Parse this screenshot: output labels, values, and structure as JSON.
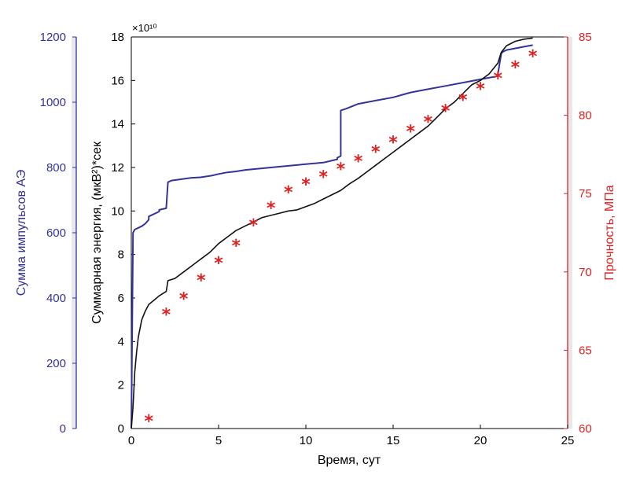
{
  "chart_data": {
    "type": "line",
    "xlabel": "Время, сут",
    "x_ticks": [
      "0",
      "5",
      "10",
      "15",
      "20",
      "25"
    ],
    "xlim": [
      0,
      25
    ],
    "axes": {
      "pulses": {
        "label": "Сумма импульсов АЭ",
        "lim": [
          0,
          1200
        ],
        "ticks": [
          "0",
          "200",
          "400",
          "600",
          "800",
          "1000",
          "1200"
        ],
        "color": "#333399"
      },
      "energy": {
        "label": "Суммарная энергия, (мкВ²)*сек",
        "lim": [
          0,
          18
        ],
        "ticks": [
          "0",
          "2",
          "4",
          "6",
          "8",
          "10",
          "12",
          "14",
          "16",
          "18"
        ],
        "multiplier": "×10¹⁰",
        "color": "#000000"
      },
      "strength": {
        "label": "Прочность, МПа",
        "lim": [
          60,
          85
        ],
        "ticks": [
          "60",
          "65",
          "70",
          "75",
          "80",
          "85"
        ],
        "color": "#dd2222"
      }
    },
    "series": [
      {
        "axis": "pulses",
        "color": "#333399",
        "style": "step",
        "x": [
          0,
          0.1,
          0.15,
          0.2,
          0.4,
          0.6,
          0.8,
          1.0,
          1.0,
          1.6,
          1.6,
          2.0,
          2.1,
          2.3,
          3.0,
          3.4,
          4.0,
          4.6,
          5.0,
          5.5,
          6.0,
          6.5,
          7.0,
          8.0,
          9.0,
          10.0,
          11.0,
          11.8,
          11.8,
          12.0,
          12.0,
          12.3,
          13.0,
          14.0,
          15.0,
          16.0,
          17.0,
          18.0,
          19.0,
          20.0,
          21.0,
          21.0,
          21.2,
          21.3,
          21.5,
          22.0,
          22.5,
          23.0
        ],
        "y": [
          0,
          600,
          605,
          610,
          615,
          620,
          628,
          640,
          650,
          665,
          670,
          675,
          755,
          760,
          765,
          768,
          770,
          775,
          780,
          785,
          788,
          792,
          795,
          800,
          805,
          810,
          815,
          825,
          830,
          835,
          975,
          980,
          995,
          1005,
          1015,
          1030,
          1040,
          1050,
          1060,
          1070,
          1080,
          1085,
          1150,
          1155,
          1160,
          1165,
          1170,
          1175
        ]
      },
      {
        "axis": "energy",
        "color": "#111111",
        "style": "line",
        "x": [
          0,
          0.1,
          0.15,
          0.2,
          0.3,
          0.4,
          0.6,
          0.8,
          1.0,
          1.3,
          1.6,
          2.0,
          2.1,
          2.5,
          3.0,
          3.5,
          4.0,
          4.5,
          5.0,
          5.5,
          6.0,
          6.5,
          7.0,
          7.5,
          8.0,
          8.5,
          9.0,
          9.5,
          10.0,
          10.5,
          11.0,
          11.5,
          12.0,
          12.5,
          13.0,
          13.5,
          14.0,
          14.5,
          15.0,
          15.5,
          16.0,
          16.5,
          17.0,
          17.5,
          18.0,
          18.5,
          19.0,
          19.5,
          20.0,
          20.5,
          21.0,
          21.2,
          21.5,
          22.0,
          22.5,
          23.0
        ],
        "y": [
          0,
          1.0,
          1.8,
          2.6,
          3.5,
          4.2,
          5.0,
          5.4,
          5.7,
          5.9,
          6.1,
          6.3,
          6.8,
          6.9,
          7.2,
          7.5,
          7.8,
          8.1,
          8.5,
          8.8,
          9.1,
          9.3,
          9.5,
          9.7,
          9.8,
          9.9,
          10.0,
          10.05,
          10.2,
          10.35,
          10.55,
          10.75,
          10.95,
          11.25,
          11.5,
          11.8,
          12.1,
          12.4,
          12.7,
          13.0,
          13.3,
          13.6,
          13.9,
          14.3,
          14.7,
          15.0,
          15.4,
          15.8,
          16.0,
          16.3,
          16.8,
          17.3,
          17.6,
          17.8,
          17.9,
          17.95
        ]
      },
      {
        "axis": "strength",
        "color": "#dd2222",
        "style": "markers",
        "marker": "*",
        "x": [
          1,
          2,
          3,
          4,
          5,
          6,
          7,
          8,
          9,
          10,
          11,
          12,
          13,
          14,
          15,
          16,
          17,
          18,
          19,
          20,
          21,
          22,
          23
        ],
        "y": [
          60.5,
          67.3,
          68.3,
          69.5,
          70.6,
          71.7,
          73.0,
          74.1,
          75.1,
          75.6,
          76.1,
          76.6,
          77.1,
          77.7,
          78.3,
          79.0,
          79.6,
          80.3,
          81.0,
          81.7,
          82.4,
          83.1,
          83.8
        ]
      }
    ],
    "grid": false
  }
}
